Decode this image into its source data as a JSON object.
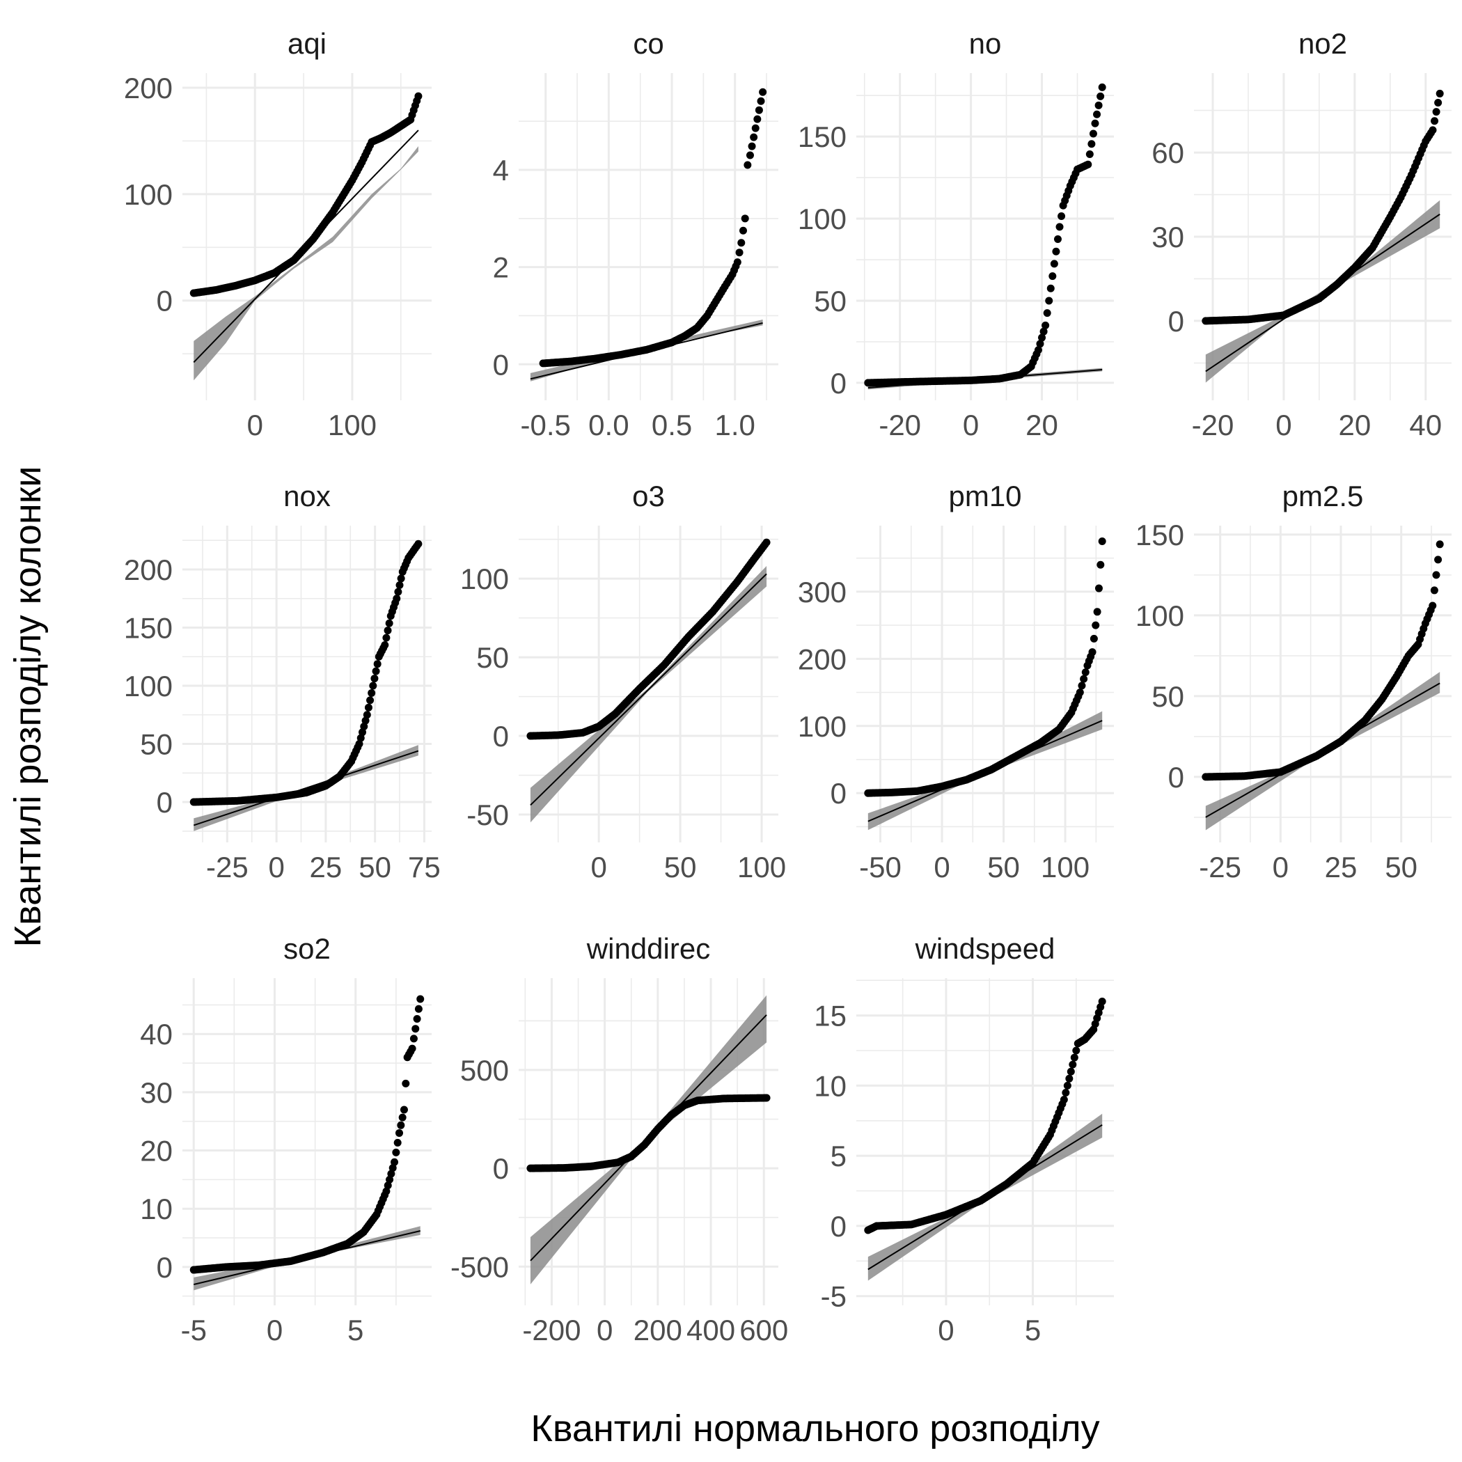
{
  "figure": {
    "xlabel": "Квантилі нормального розподілу",
    "ylabel": "Квантилі розподілу колонки"
  },
  "colors": {
    "grid": "#ebebeb",
    "points": "#000000",
    "ribbon": "#8c8c8c",
    "line": "#000000",
    "text": "#4d4d4d",
    "title": "#1a1a1a"
  },
  "chart_data": [
    {
      "type": "scatter",
      "title": "aqi",
      "xlim": [
        -63,
        170
      ],
      "ylim": [
        -85,
        205
      ],
      "xticks": [
        0,
        100
      ],
      "xtick_labels": [
        "0",
        "100"
      ],
      "yticks": [
        0,
        100,
        200
      ],
      "ytick_labels": [
        "0",
        "100",
        "200"
      ],
      "points": [
        [
          -63,
          7
        ],
        [
          -40,
          10
        ],
        [
          -20,
          14
        ],
        [
          0,
          19
        ],
        [
          20,
          26
        ],
        [
          40,
          38
        ],
        [
          60,
          58
        ],
        [
          80,
          83
        ],
        [
          100,
          113
        ],
        [
          110,
          130
        ],
        [
          120,
          149
        ],
        [
          130,
          153
        ],
        [
          140,
          158
        ],
        [
          150,
          164
        ],
        [
          160,
          170
        ],
        [
          168,
          192
        ]
      ],
      "fit": [
        [
          -63,
          -58
        ],
        [
          168,
          160
        ]
      ],
      "ribbon_upper": [
        [
          -63,
          -38
        ],
        [
          -30,
          -15
        ],
        [
          0,
          4
        ],
        [
          40,
          32
        ],
        [
          80,
          60
        ],
        [
          120,
          100
        ],
        [
          150,
          124
        ],
        [
          168,
          145
        ]
      ],
      "ribbon_lower": [
        [
          -63,
          -75
        ],
        [
          -30,
          -40
        ],
        [
          0,
          0
        ],
        [
          40,
          30
        ],
        [
          80,
          55
        ],
        [
          120,
          96
        ],
        [
          150,
          123
        ],
        [
          168,
          140
        ]
      ]
    },
    {
      "type": "scatter",
      "title": "co",
      "xlim": [
        -0.62,
        1.25
      ],
      "ylim": [
        -0.55,
        5.8
      ],
      "xticks": [
        -0.5,
        0.0,
        0.5,
        1.0
      ],
      "xtick_labels": [
        "-0.5",
        "0.0",
        "0.5",
        "1.0"
      ],
      "yticks": [
        0,
        2,
        4
      ],
      "ytick_labels": [
        "0",
        "2",
        "4"
      ],
      "points": [
        [
          -0.52,
          0.02
        ],
        [
          -0.3,
          0.06
        ],
        [
          -0.1,
          0.12
        ],
        [
          0.1,
          0.2
        ],
        [
          0.3,
          0.3
        ],
        [
          0.5,
          0.45
        ],
        [
          0.6,
          0.58
        ],
        [
          0.7,
          0.75
        ],
        [
          0.78,
          1.0
        ],
        [
          0.85,
          1.3
        ],
        [
          0.92,
          1.6
        ],
        [
          0.98,
          1.85
        ],
        [
          1.02,
          2.1
        ],
        [
          1.05,
          2.5
        ],
        [
          1.08,
          3.0
        ],
        [
          1.1,
          4.1
        ],
        [
          1.12,
          4.3
        ],
        [
          1.22,
          5.6
        ]
      ],
      "fit": [
        [
          -0.62,
          -0.3
        ],
        [
          1.22,
          0.85
        ]
      ],
      "ribbon_upper": [
        [
          -0.62,
          -0.18
        ],
        [
          0.3,
          0.38
        ],
        [
          1.22,
          0.92
        ]
      ],
      "ribbon_lower": [
        [
          -0.62,
          -0.35
        ],
        [
          0.3,
          0.34
        ],
        [
          1.22,
          0.8
        ]
      ]
    },
    {
      "type": "scatter",
      "title": "no",
      "xlim": [
        -29,
        37
      ],
      "ylim": [
        -5,
        183
      ],
      "xticks": [
        -20,
        0,
        20
      ],
      "xtick_labels": [
        "-20",
        "0",
        "20"
      ],
      "yticks": [
        0,
        50,
        100,
        150
      ],
      "ytick_labels": [
        "0",
        "50",
        "100",
        "150"
      ],
      "points": [
        [
          -29,
          0
        ],
        [
          -20,
          0.5
        ],
        [
          -10,
          1
        ],
        [
          0,
          1.5
        ],
        [
          8,
          2.5
        ],
        [
          14,
          5
        ],
        [
          17,
          10
        ],
        [
          19,
          20
        ],
        [
          21,
          35
        ],
        [
          22,
          50
        ],
        [
          23,
          65
        ],
        [
          24,
          80
        ],
        [
          25,
          95
        ],
        [
          26,
          108
        ],
        [
          28,
          120
        ],
        [
          30,
          130
        ],
        [
          33,
          133
        ],
        [
          35,
          158
        ],
        [
          37,
          180
        ]
      ],
      "fit": [
        [
          -29,
          -3
        ],
        [
          37,
          8
        ]
      ],
      "ribbon_upper": [
        [
          -29,
          -2
        ],
        [
          37,
          9
        ]
      ],
      "ribbon_lower": [
        [
          -29,
          -4
        ],
        [
          37,
          7
        ]
      ]
    },
    {
      "type": "scatter",
      "title": "no2",
      "xlim": [
        -22,
        44
      ],
      "ylim": [
        -25,
        85
      ],
      "xticks": [
        -20,
        0,
        20,
        40
      ],
      "xtick_labels": [
        "-20",
        "0",
        "20",
        "40"
      ],
      "yticks": [
        0,
        30,
        60
      ],
      "ytick_labels": [
        "0",
        "30",
        "60"
      ],
      "points": [
        [
          -22,
          0
        ],
        [
          -10,
          0.5
        ],
        [
          0,
          2
        ],
        [
          10,
          8
        ],
        [
          15,
          13
        ],
        [
          20,
          19
        ],
        [
          25,
          26
        ],
        [
          30,
          37
        ],
        [
          33,
          44
        ],
        [
          36,
          52
        ],
        [
          38,
          58
        ],
        [
          40,
          64
        ],
        [
          42,
          68
        ],
        [
          44,
          81
        ]
      ],
      "fit": [
        [
          -22,
          -18
        ],
        [
          44,
          38
        ]
      ],
      "ribbon_upper": [
        [
          -22,
          -12
        ],
        [
          0,
          2
        ],
        [
          20,
          18
        ],
        [
          44,
          43
        ]
      ],
      "ribbon_lower": [
        [
          -22,
          -22
        ],
        [
          0,
          1
        ],
        [
          20,
          16
        ],
        [
          44,
          33
        ]
      ]
    },
    {
      "type": "scatter",
      "title": "nox",
      "xlim": [
        -42,
        73
      ],
      "ylim": [
        -27,
        230
      ],
      "xticks": [
        -25,
        0,
        25,
        50,
        75
      ],
      "xtick_labels": [
        "-25",
        "0",
        "25",
        "50",
        "75"
      ],
      "yticks": [
        0,
        50,
        100,
        150,
        200
      ],
      "ytick_labels": [
        "0",
        "50",
        "100",
        "150",
        "200"
      ],
      "points": [
        [
          -42,
          0
        ],
        [
          -20,
          1
        ],
        [
          0,
          4
        ],
        [
          15,
          8
        ],
        [
          25,
          14
        ],
        [
          32,
          22
        ],
        [
          38,
          35
        ],
        [
          42,
          50
        ],
        [
          46,
          75
        ],
        [
          49,
          100
        ],
        [
          52,
          125
        ],
        [
          55,
          135
        ],
        [
          58,
          160
        ],
        [
          61,
          175
        ],
        [
          64,
          198
        ],
        [
          67,
          210
        ],
        [
          72,
          222
        ]
      ],
      "fit": [
        [
          -42,
          -20
        ],
        [
          72,
          44
        ]
      ],
      "ribbon_upper": [
        [
          -42,
          -14
        ],
        [
          15,
          12
        ],
        [
          72,
          49
        ]
      ],
      "ribbon_lower": [
        [
          -42,
          -25
        ],
        [
          15,
          10
        ],
        [
          72,
          40
        ]
      ]
    },
    {
      "type": "scatter",
      "title": "o3",
      "xlim": [
        -42,
        103
      ],
      "ylim": [
        -62,
        128
      ],
      "xticks": [
        0,
        50,
        100
      ],
      "xtick_labels": [
        "0",
        "50",
        "100"
      ],
      "yticks": [
        -50,
        0,
        50,
        100
      ],
      "ytick_labels": [
        "-50",
        "0",
        "50",
        "100"
      ],
      "points": [
        [
          -42,
          0
        ],
        [
          -25,
          0.5
        ],
        [
          -10,
          2
        ],
        [
          0,
          6
        ],
        [
          10,
          14
        ],
        [
          25,
          30
        ],
        [
          40,
          45
        ],
        [
          55,
          63
        ],
        [
          70,
          79
        ],
        [
          85,
          98
        ],
        [
          95,
          112
        ],
        [
          103,
          123
        ]
      ],
      "fit": [
        [
          -42,
          -44
        ],
        [
          103,
          103
        ]
      ],
      "ribbon_upper": [
        [
          -42,
          -33
        ],
        [
          30,
          30
        ],
        [
          103,
          108
        ]
      ],
      "ribbon_lower": [
        [
          -42,
          -55
        ],
        [
          30,
          28
        ],
        [
          103,
          95
        ]
      ]
    },
    {
      "type": "scatter",
      "title": "pm10",
      "xlim": [
        -60,
        130
      ],
      "ylim": [
        -60,
        385
      ],
      "xticks": [
        -50,
        0,
        50,
        100
      ],
      "xtick_labels": [
        "-50",
        "0",
        "50",
        "100"
      ],
      "yticks": [
        0,
        100,
        200,
        300
      ],
      "ytick_labels": [
        "0",
        "100",
        "200",
        "300"
      ],
      "points": [
        [
          -60,
          0
        ],
        [
          -40,
          1
        ],
        [
          -20,
          3
        ],
        [
          0,
          10
        ],
        [
          20,
          20
        ],
        [
          40,
          35
        ],
        [
          60,
          55
        ],
        [
          80,
          75
        ],
        [
          95,
          95
        ],
        [
          105,
          120
        ],
        [
          112,
          150
        ],
        [
          118,
          190
        ],
        [
          122,
          210
        ],
        [
          126,
          270
        ],
        [
          130,
          375
        ]
      ],
      "fit": [
        [
          -60,
          -42
        ],
        [
          130,
          108
        ]
      ],
      "ribbon_upper": [
        [
          -60,
          -30
        ],
        [
          30,
          28
        ],
        [
          130,
          122
        ]
      ],
      "ribbon_lower": [
        [
          -60,
          -55
        ],
        [
          30,
          26
        ],
        [
          130,
          95
        ]
      ]
    },
    {
      "type": "scatter",
      "title": "pm2.5",
      "xlim": [
        -31,
        66
      ],
      "ylim": [
        -35,
        150
      ],
      "xticks": [
        -25,
        0,
        25,
        50
      ],
      "xtick_labels": [
        "-25",
        "0",
        "25",
        "50"
      ],
      "yticks": [
        0,
        50,
        100,
        150
      ],
      "ytick_labels": [
        "0",
        "50",
        "100",
        "150"
      ],
      "points": [
        [
          -31,
          0
        ],
        [
          -15,
          0.5
        ],
        [
          0,
          3
        ],
        [
          15,
          13
        ],
        [
          25,
          22
        ],
        [
          35,
          35
        ],
        [
          42,
          48
        ],
        [
          48,
          62
        ],
        [
          53,
          75
        ],
        [
          57,
          82
        ],
        [
          60,
          95
        ],
        [
          63,
          106
        ],
        [
          66,
          144
        ]
      ],
      "fit": [
        [
          -31,
          -25
        ],
        [
          66,
          58
        ]
      ],
      "ribbon_upper": [
        [
          -31,
          -18
        ],
        [
          15,
          13
        ],
        [
          66,
          65
        ]
      ],
      "ribbon_lower": [
        [
          -31,
          -33
        ],
        [
          15,
          12
        ],
        [
          66,
          52
        ]
      ]
    },
    {
      "type": "scatter",
      "title": "so2",
      "xlim": [
        -5,
        9
      ],
      "ylim": [
        -5,
        48
      ],
      "xticks": [
        -5,
        0,
        5
      ],
      "xtick_labels": [
        "-5",
        "0",
        "5"
      ],
      "yticks": [
        0,
        10,
        20,
        30,
        40
      ],
      "ytick_labels": [
        "0",
        "10",
        "20",
        "30",
        "40"
      ],
      "points": [
        [
          -5,
          -0.5
        ],
        [
          -3,
          0
        ],
        [
          -1,
          0.3
        ],
        [
          1,
          1
        ],
        [
          3,
          2.5
        ],
        [
          4.5,
          4
        ],
        [
          5.5,
          6
        ],
        [
          6.3,
          9
        ],
        [
          6.9,
          13
        ],
        [
          7.4,
          18
        ],
        [
          7.7,
          23
        ],
        [
          8.0,
          27
        ],
        [
          8.2,
          36
        ],
        [
          8.5,
          37.5
        ],
        [
          9,
          46
        ]
      ],
      "fit": [
        [
          -5,
          -3
        ],
        [
          9,
          6.2
        ]
      ],
      "ribbon_upper": [
        [
          -5,
          -1.8
        ],
        [
          2,
          2
        ],
        [
          9,
          7
        ]
      ],
      "ribbon_lower": [
        [
          -5,
          -4
        ],
        [
          2,
          1.7
        ],
        [
          9,
          5.5
        ]
      ]
    },
    {
      "type": "scatter",
      "title": "winddirec",
      "xlim": [
        -280,
        610
      ],
      "ylim": [
        -650,
        920
      ],
      "xticks": [
        -200,
        0,
        200,
        400,
        600
      ],
      "xtick_labels": [
        "-200",
        "0",
        "200",
        "400",
        "600"
      ],
      "yticks": [
        -500,
        0,
        500
      ],
      "ytick_labels": [
        "-500",
        "0",
        "500"
      ],
      "points": [
        [
          -280,
          0
        ],
        [
          -150,
          2
        ],
        [
          -50,
          10
        ],
        [
          50,
          30
        ],
        [
          100,
          60
        ],
        [
          150,
          120
        ],
        [
          200,
          200
        ],
        [
          250,
          270
        ],
        [
          300,
          320
        ],
        [
          350,
          345
        ],
        [
          450,
          355
        ],
        [
          550,
          357
        ],
        [
          610,
          358
        ]
      ],
      "fit": [
        [
          -280,
          -470
        ],
        [
          610,
          780
        ]
      ],
      "ribbon_upper": [
        [
          -280,
          -350
        ],
        [
          150,
          140
        ],
        [
          610,
          880
        ]
      ],
      "ribbon_lower": [
        [
          -280,
          -590
        ],
        [
          150,
          130
        ],
        [
          610,
          640
        ]
      ]
    },
    {
      "type": "scatter",
      "title": "windspeed",
      "xlim": [
        -4.5,
        9
      ],
      "ylim": [
        -5,
        17
      ],
      "xticks": [
        0,
        5
      ],
      "xtick_labels": [
        "0",
        "5"
      ],
      "yticks": [
        -5,
        0,
        5,
        10,
        15
      ],
      "ytick_labels": [
        "-5",
        "0",
        "5",
        "10",
        "15"
      ],
      "points": [
        [
          -4.5,
          -0.3
        ],
        [
          -4,
          0
        ],
        [
          -2,
          0.1
        ],
        [
          0,
          0.8
        ],
        [
          2,
          1.8
        ],
        [
          3.5,
          3
        ],
        [
          5,
          4.5
        ],
        [
          6,
          6.5
        ],
        [
          6.8,
          9
        ],
        [
          7.2,
          11
        ],
        [
          7.6,
          13
        ],
        [
          8.0,
          13.3
        ],
        [
          8.5,
          14
        ],
        [
          9,
          16
        ]
      ],
      "fit": [
        [
          -4.5,
          -3.1
        ],
        [
          9,
          7.2
        ]
      ],
      "ribbon_upper": [
        [
          -4.5,
          -2.2
        ],
        [
          2,
          1.8
        ],
        [
          9,
          8
        ]
      ],
      "ribbon_lower": [
        [
          -4.5,
          -3.9
        ],
        [
          2,
          1.6
        ],
        [
          9,
          6.3
        ]
      ]
    }
  ]
}
